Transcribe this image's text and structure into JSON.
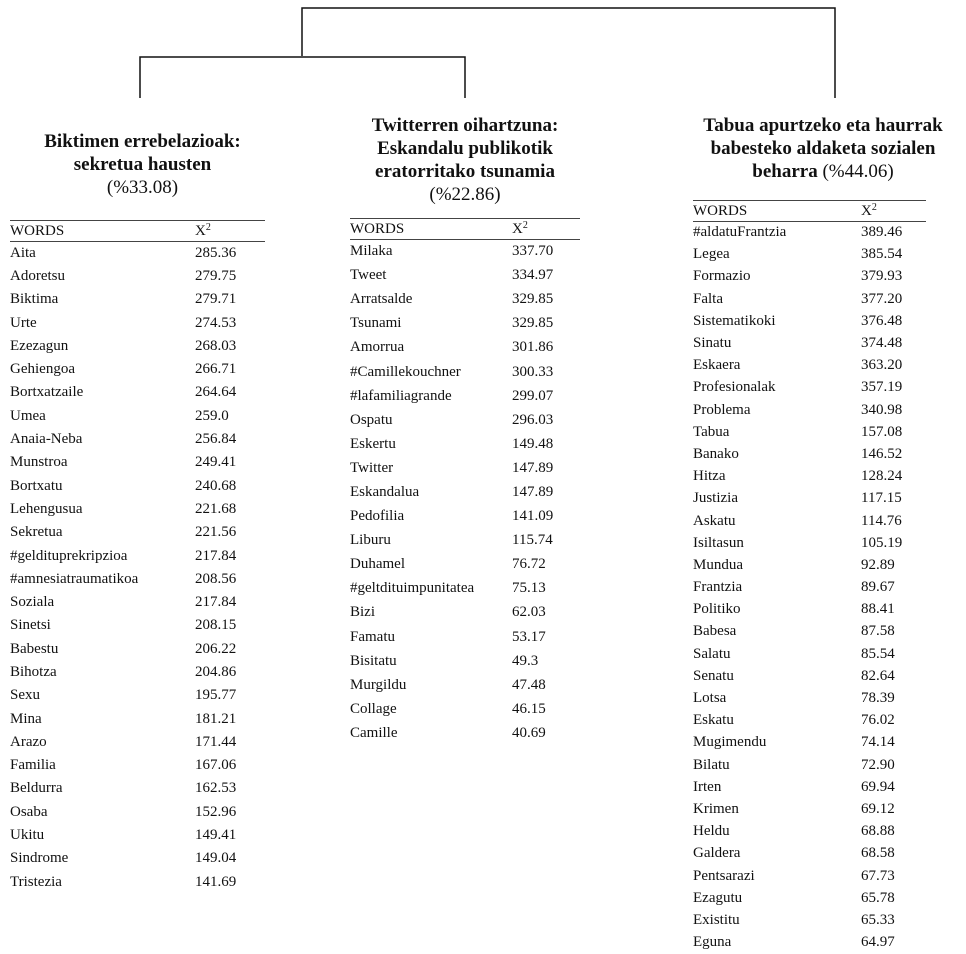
{
  "root_cluster": "",
  "clusters": [
    {
      "title_lines": [
        "Biktimen errebelazioak:",
        "sekretua hausten"
      ],
      "percentage": "(%33.08)",
      "headers": {
        "words": "WORDS",
        "chi": "X",
        "chi_sup": "2"
      },
      "rows": [
        [
          "Aita",
          "285.36"
        ],
        [
          "Adoretsu",
          "279.75"
        ],
        [
          "Biktima",
          "279.71"
        ],
        [
          "Urte",
          "274.53"
        ],
        [
          "Ezezagun",
          "268.03"
        ],
        [
          "Gehiengoa",
          "266.71"
        ],
        [
          "Bortxatzaile",
          "264.64"
        ],
        [
          "Umea",
          "259.0"
        ],
        [
          "Anaia-Neba",
          "256.84"
        ],
        [
          "Munstroa",
          "249.41"
        ],
        [
          "Bortxatu",
          "240.68"
        ],
        [
          "Lehengusua",
          "221.68"
        ],
        [
          "Sekretua",
          "221.56"
        ],
        [
          "#geldituprekripzioa",
          "217.84"
        ],
        [
          "#amnesiatraumatikoa",
          "208.56"
        ],
        [
          "Soziala",
          "217.84"
        ],
        [
          "Sinetsi",
          "208.15"
        ],
        [
          "Babestu",
          "206.22"
        ],
        [
          "Bihotza",
          "204.86"
        ],
        [
          "Sexu",
          "195.77"
        ],
        [
          "Mina",
          "181.21"
        ],
        [
          "Arazo",
          "171.44"
        ],
        [
          "Familia",
          "167.06"
        ],
        [
          "Beldurra",
          "162.53"
        ],
        [
          "Osaba",
          "152.96"
        ],
        [
          "Ukitu",
          "149.41"
        ],
        [
          "Sindrome",
          "149.04"
        ],
        [
          "Tristezia",
          "141.69"
        ]
      ]
    },
    {
      "title_lines": [
        "Twitterren oihartzuna:",
        "Eskandalu publikotik",
        "eratorritako tsunamia"
      ],
      "percentage": "(%22.86)",
      "headers": {
        "words": "WORDS",
        "chi": "X",
        "chi_sup": "2"
      },
      "rows": [
        [
          "Milaka",
          "337.70"
        ],
        [
          "Tweet",
          "334.97"
        ],
        [
          "Arratsalde",
          "329.85"
        ],
        [
          "Tsunami",
          "329.85"
        ],
        [
          "Amorrua",
          "301.86"
        ],
        [
          "#Camillekouchner",
          "300.33"
        ],
        [
          "#lafamiliagrande",
          "299.07"
        ],
        [
          "Ospatu",
          "296.03"
        ],
        [
          "Eskertu",
          "149.48"
        ],
        [
          "Twitter",
          "147.89"
        ],
        [
          "Eskandalua",
          "147.89"
        ],
        [
          "Pedofilia",
          "141.09"
        ],
        [
          "Liburu",
          "115.74"
        ],
        [
          "Duhamel",
          "76.72"
        ],
        [
          "#geltdituimpunitatea",
          "75.13"
        ],
        [
          "Bizi",
          "62.03"
        ],
        [
          "Famatu",
          "53.17"
        ],
        [
          "Bisitatu",
          "49.3"
        ],
        [
          "Murgildu",
          "47.48"
        ],
        [
          "Collage",
          "46.15"
        ],
        [
          "Camille",
          "40.69"
        ]
      ]
    },
    {
      "title_lines": [
        "Tabua apurtzeko eta haurrak",
        "babesteko aldaketa sozialen",
        "beharra"
      ],
      "percentage": "(%44.06)",
      "headers": {
        "words": "WORDS",
        "chi": "X",
        "chi_sup": "2"
      },
      "rows": [
        [
          "#aldatuFrantzia",
          "389.46"
        ],
        [
          "Legea",
          "385.54"
        ],
        [
          "Formazio",
          "379.93"
        ],
        [
          "Falta",
          "377.20"
        ],
        [
          "Sistematikoki",
          "376.48"
        ],
        [
          "Sinatu",
          "374.48"
        ],
        [
          "Eskaera",
          "363.20"
        ],
        [
          "Profesionalak",
          "357.19"
        ],
        [
          "Problema",
          "340.98"
        ],
        [
          "Tabua",
          "157.08"
        ],
        [
          "Banako",
          "146.52"
        ],
        [
          "Hitza",
          "128.24"
        ],
        [
          "Justizia",
          "117.15"
        ],
        [
          "Askatu",
          "114.76"
        ],
        [
          "Isiltasun",
          "105.19"
        ],
        [
          "Mundua",
          "92.89"
        ],
        [
          "Frantzia",
          "89.67"
        ],
        [
          "Politiko",
          "88.41"
        ],
        [
          "Babesa",
          "87.58"
        ],
        [
          "Salatu",
          "85.54"
        ],
        [
          "Senatu",
          "82.64"
        ],
        [
          "Lotsa",
          "78.39"
        ],
        [
          "Eskatu",
          "76.02"
        ],
        [
          "Mugimendu",
          "74.14"
        ],
        [
          "Bilatu",
          "72.90"
        ],
        [
          "Irten",
          "69.94"
        ],
        [
          "Krimen",
          "69.12"
        ],
        [
          "Heldu",
          "68.88"
        ],
        [
          "Galdera",
          "68.58"
        ],
        [
          "Pentsarazi",
          "67.73"
        ],
        [
          "Ezagutu",
          "65.78"
        ],
        [
          "Existitu",
          "65.33"
        ],
        [
          "Eguna",
          "64.97"
        ]
      ]
    }
  ]
}
